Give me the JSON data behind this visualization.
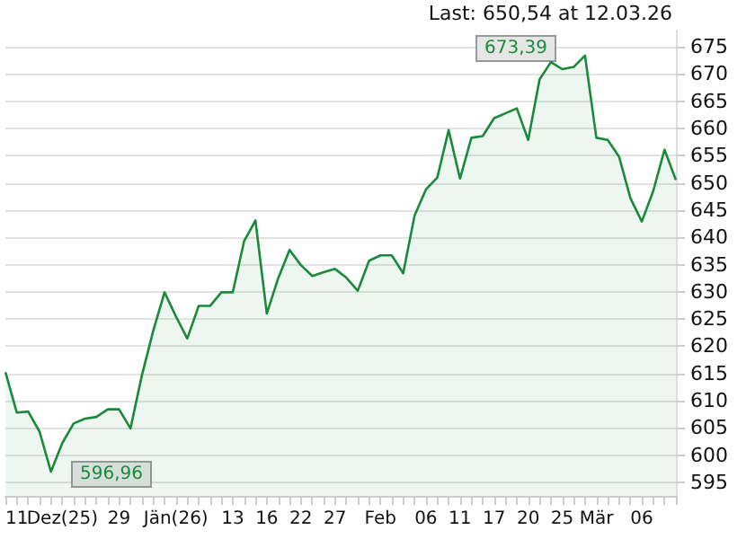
{
  "chart_data": {
    "type": "area",
    "categories": [
      null,
      "11",
      null,
      null,
      null,
      "Dez(25)",
      null,
      null,
      null,
      null,
      "29",
      null,
      null,
      null,
      null,
      "Jän(26)",
      null,
      null,
      null,
      null,
      "13",
      null,
      null,
      "16",
      null,
      null,
      "22",
      null,
      null,
      "27",
      null,
      null,
      null,
      "Feb",
      null,
      null,
      null,
      "06",
      null,
      null,
      "11",
      null,
      null,
      "17",
      null,
      null,
      "20",
      null,
      null,
      "25",
      null,
      null,
      "Mär",
      null,
      null,
      null,
      "06",
      null,
      null,
      null
    ],
    "series": [
      {
        "color": "#1a8a3a",
        "values": [
          615.2,
          607.8,
          608.0,
          604.3,
          596.96,
          602.2,
          605.8,
          606.7,
          607.0,
          608.4,
          608.4,
          604.9,
          614.6,
          622.8,
          629.9,
          625.5,
          621.4,
          627.4,
          627.4,
          629.9,
          629.9,
          639.3,
          643.1,
          626.0,
          632.5,
          637.7,
          634.9,
          632.9,
          633.6,
          634.2,
          632.6,
          630.2,
          635.7,
          636.7,
          636.7,
          633.4,
          644.0,
          648.8,
          651.0,
          659.7,
          650.8,
          658.3,
          658.6,
          661.9,
          662.8,
          663.7,
          657.9,
          669.0,
          672.2,
          670.9,
          671.3,
          673.39,
          658.3,
          657.9,
          654.8,
          647.2,
          642.9,
          648.5,
          656.1,
          650.54
        ]
      }
    ],
    "ylim": [
      592.5,
      678
    ],
    "yticks": [
      595,
      600,
      605,
      610,
      615,
      620,
      625,
      630,
      635,
      640,
      645,
      650,
      655,
      660,
      665,
      670,
      675
    ],
    "grid": "y",
    "annotations": [
      "Last: 650,54 at 12.03.26",
      "673,39",
      "596,96"
    ]
  }
}
